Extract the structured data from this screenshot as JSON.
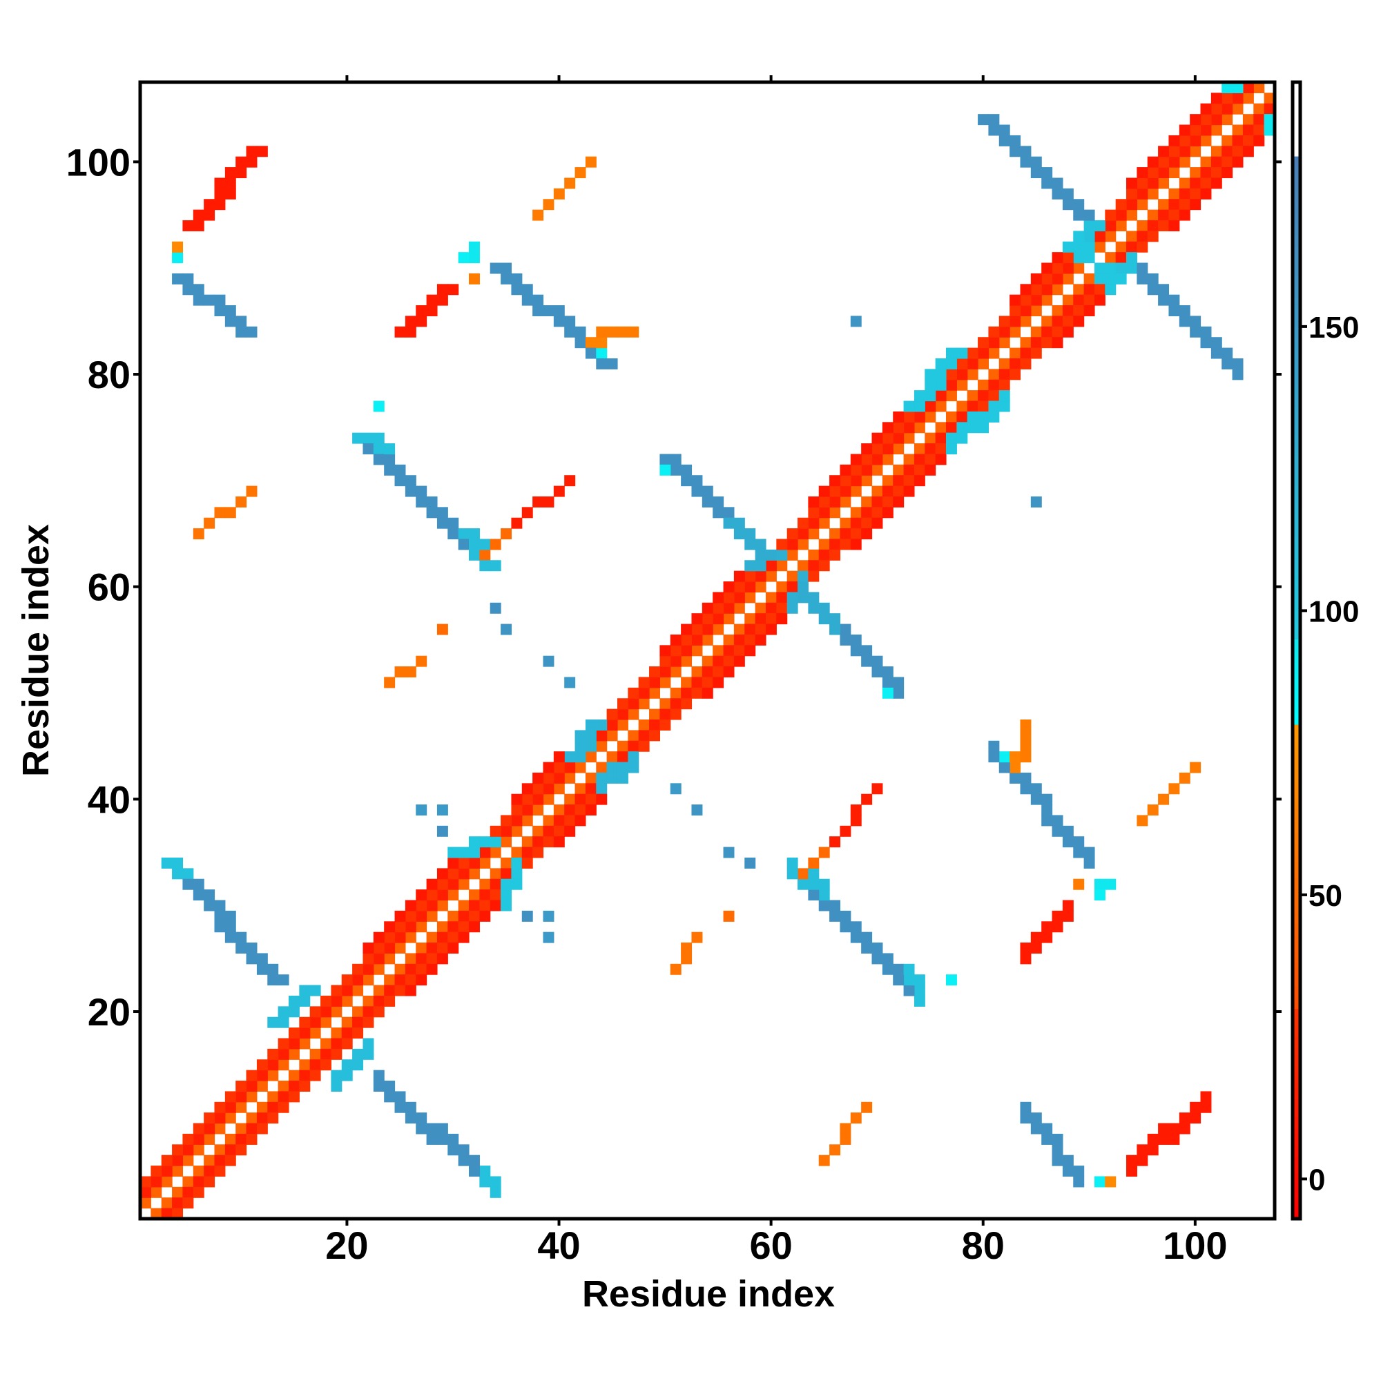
{
  "chart_data": {
    "type": "heatmap",
    "title": "",
    "xlabel": "Residue index",
    "ylabel": "Residue index",
    "xlim": [
      0.5,
      107.5
    ],
    "ylim": [
      0.5,
      107.5
    ],
    "xticks": [
      20,
      40,
      60,
      80,
      100
    ],
    "yticks": [
      20,
      40,
      60,
      80,
      100
    ],
    "symmetric": true,
    "grid": false,
    "colorbar": {
      "range": [
        -7,
        193
      ],
      "ticks": [
        0,
        50,
        100,
        150
      ],
      "placement": "right",
      "stops": [
        {
          "from": -7,
          "to": 30,
          "c0": "#ff0000",
          "c1": "#ff3300"
        },
        {
          "from": 30,
          "to": 80,
          "c0": "#ff4d00",
          "c1": "#ff9900"
        },
        {
          "from": 80,
          "to": 95,
          "c0": "#00ffff",
          "c1": "#10e8f0"
        },
        {
          "from": 95,
          "to": 180,
          "c0": "#20cbe2",
          "c1": "#4a7fb8"
        },
        {
          "from": 180,
          "to": 193,
          "c0": "#ffffff",
          "c1": "#ffffff"
        }
      ]
    },
    "segments_note": "each segment: [x1, y1, x2, y2, value, thickness] in residue units, mirrored across diagonal",
    "segments": [
      [
        1,
        2,
        106,
        107,
        45,
        1
      ],
      [
        1,
        3,
        105,
        107,
        15,
        1
      ],
      [
        1,
        4,
        104,
        107,
        30,
        1
      ],
      [
        22,
        26,
        30,
        34,
        10,
        1
      ],
      [
        36,
        40,
        40,
        44,
        10,
        1
      ],
      [
        50,
        54,
        58,
        62,
        10,
        1
      ],
      [
        64,
        68,
        72,
        76,
        10,
        1
      ],
      [
        83,
        87,
        87,
        91,
        10,
        1
      ],
      [
        94,
        98,
        102,
        106,
        10,
        1
      ],
      [
        13,
        19,
        16,
        22,
        110,
        2
      ],
      [
        30,
        35,
        33,
        36,
        100,
        2
      ],
      [
        41,
        44,
        43,
        47,
        120,
        2
      ],
      [
        58,
        62,
        60,
        63,
        125,
        2
      ],
      [
        73,
        77,
        77,
        82,
        100,
        2
      ],
      [
        88,
        92,
        90,
        94,
        105,
        2
      ],
      [
        103,
        107,
        104,
        107,
        95,
        1
      ],
      [
        3,
        34,
        13,
        23,
        160,
        2
      ],
      [
        3,
        34,
        4,
        33,
        105,
        2
      ],
      [
        4,
        89,
        10,
        84,
        160,
        2
      ],
      [
        4,
        91,
        4,
        91,
        90,
        1
      ],
      [
        4,
        92,
        4,
        92,
        70,
        1
      ],
      [
        5,
        94,
        11,
        101,
        12,
        2
      ],
      [
        21,
        74,
        33,
        62,
        160,
        2
      ],
      [
        21,
        74,
        23,
        73,
        105,
        2
      ],
      [
        31,
        65,
        33,
        62,
        110,
        2
      ],
      [
        34,
        90,
        44,
        81,
        160,
        2
      ],
      [
        44,
        83,
        44,
        82,
        90,
        1
      ],
      [
        32,
        92,
        32,
        91,
        95,
        1
      ],
      [
        31,
        91,
        31,
        91,
        90,
        1
      ],
      [
        32,
        89,
        32,
        89,
        60,
        1
      ],
      [
        50,
        72,
        59,
        63,
        160,
        2
      ],
      [
        50,
        71,
        50,
        71,
        90,
        1
      ],
      [
        56,
        66,
        59,
        63,
        130,
        2
      ],
      [
        80,
        104,
        89,
        95,
        160,
        2
      ],
      [
        88,
        92,
        92,
        89,
        100,
        2
      ],
      [
        38,
        95,
        43,
        100,
        60,
        1
      ],
      [
        25,
        84,
        29,
        88,
        12,
        2
      ],
      [
        43,
        83,
        46,
        84,
        65,
        1
      ],
      [
        44,
        84,
        47,
        84,
        60,
        1
      ],
      [
        6,
        65,
        11,
        69,
        55,
        1
      ],
      [
        36,
        66,
        41,
        70,
        14,
        1
      ],
      [
        33,
        63,
        35,
        65,
        50,
        1
      ],
      [
        68,
        85,
        68,
        85,
        155,
        1
      ],
      [
        34,
        58,
        34,
        58,
        160,
        1
      ],
      [
        35,
        56,
        35,
        56,
        155,
        1
      ],
      [
        39,
        53,
        39,
        53,
        155,
        1
      ],
      [
        41,
        51,
        41,
        51,
        150,
        1
      ],
      [
        29,
        56,
        29,
        56,
        50,
        1
      ],
      [
        24,
        51,
        27,
        53,
        55,
        1
      ],
      [
        27,
        39,
        27,
        39,
        150,
        1
      ],
      [
        29,
        39,
        29,
        39,
        150,
        1
      ],
      [
        29,
        37,
        29,
        37,
        160,
        1
      ],
      [
        23,
        77,
        23,
        77,
        90,
        1
      ]
    ]
  }
}
